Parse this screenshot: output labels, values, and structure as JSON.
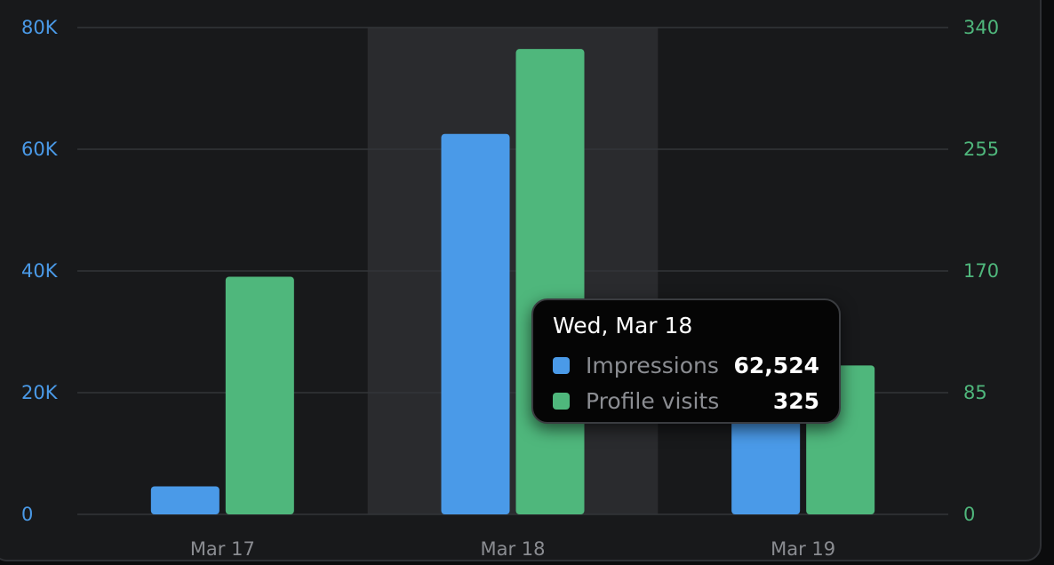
{
  "chart_data": {
    "type": "bar",
    "categories": [
      "Mar 17",
      "Mar 18",
      "Mar 19"
    ],
    "series": [
      {
        "name": "Impressions",
        "axis": "left",
        "color": "#4a9ae8",
        "values": [
          4600,
          62524,
          21000
        ]
      },
      {
        "name": "Profile visits",
        "axis": "right",
        "color": "#4fb77c",
        "values": [
          166,
          325,
          104
        ]
      }
    ],
    "y_left": {
      "ylim": [
        0,
        80000
      ],
      "ticks": [
        0,
        20000,
        40000,
        60000,
        80000
      ],
      "tick_labels": [
        "0",
        "20K",
        "40K",
        "60K",
        "80K"
      ],
      "color": "#4a9ae8"
    },
    "y_right": {
      "ylim": [
        0,
        340
      ],
      "ticks": [
        0,
        85,
        170,
        255,
        340
      ],
      "tick_labels": [
        "0",
        "85",
        "170",
        "255",
        "340"
      ],
      "color": "#4fb77c"
    },
    "grid": true,
    "highlighted_category": "Mar 18",
    "tooltip": {
      "title": "Wed, Mar 18",
      "rows": [
        {
          "label": "Impressions",
          "value": "62,524",
          "color": "#4a9ae8"
        },
        {
          "label": "Profile visits",
          "value": "325",
          "color": "#4fb77c"
        }
      ]
    }
  }
}
